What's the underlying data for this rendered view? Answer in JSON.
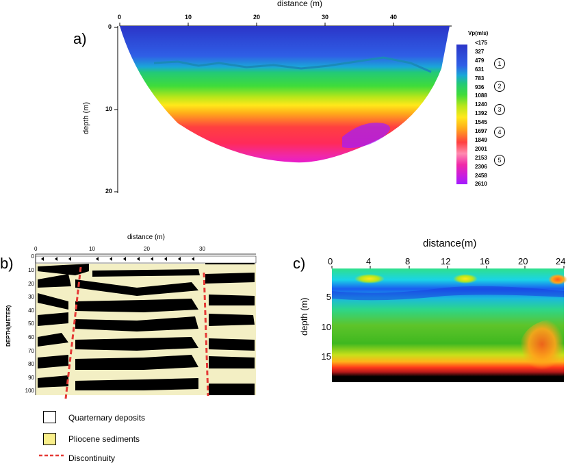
{
  "panel_a": {
    "label": "a)",
    "xlabel": "distance (m)",
    "ylabel": "depth (m)",
    "xticks": [
      "0",
      "10",
      "20",
      "30",
      "40"
    ],
    "yticks": [
      "0",
      "10",
      "20"
    ],
    "colorbar_title": "Vp(m/s)",
    "colorbar_values": [
      "<175",
      "327",
      "479",
      "631",
      "783",
      "936",
      "1088",
      "1240",
      "1392",
      "1545",
      "1697",
      "1849",
      "2001",
      "2153",
      "2306",
      "2458",
      "2610"
    ],
    "layer_markers": [
      "1",
      "2",
      "3",
      "4",
      "5"
    ],
    "colors": [
      "#2b35c8",
      "#2e5fe6",
      "#1aa6d8",
      "#22c977",
      "#3fdc3a",
      "#b8e61a",
      "#ffe81a",
      "#ffab1a",
      "#ff5a3a",
      "#ff2a4a",
      "#f028a8",
      "#c81ce0",
      "#a11cff"
    ]
  },
  "panel_b": {
    "label": "b)",
    "xlabel": "distance (m)",
    "ylabel": "DEPTH(METER)",
    "xticks": [
      "0",
      "10",
      "20",
      "30"
    ],
    "yticks": [
      "0",
      "10",
      "20",
      "30",
      "40",
      "50",
      "60",
      "70",
      "80",
      "90",
      "100"
    ],
    "background_color": "#f3efc4"
  },
  "panel_c": {
    "label": "c)",
    "xlabel": "distance(m)",
    "ylabel": "depth (m)",
    "xticks": [
      "0",
      "4",
      "8",
      "12",
      "16",
      "20",
      "24"
    ],
    "yticks": [
      "5",
      "10",
      "15"
    ]
  },
  "legend": {
    "items": [
      {
        "label": "Quarternary deposits",
        "color": "#ffffff"
      },
      {
        "label": "Pliocene sediments",
        "color": "#f9ef8a"
      },
      {
        "label": "Discontinuity",
        "color": "#e53935"
      }
    ]
  }
}
